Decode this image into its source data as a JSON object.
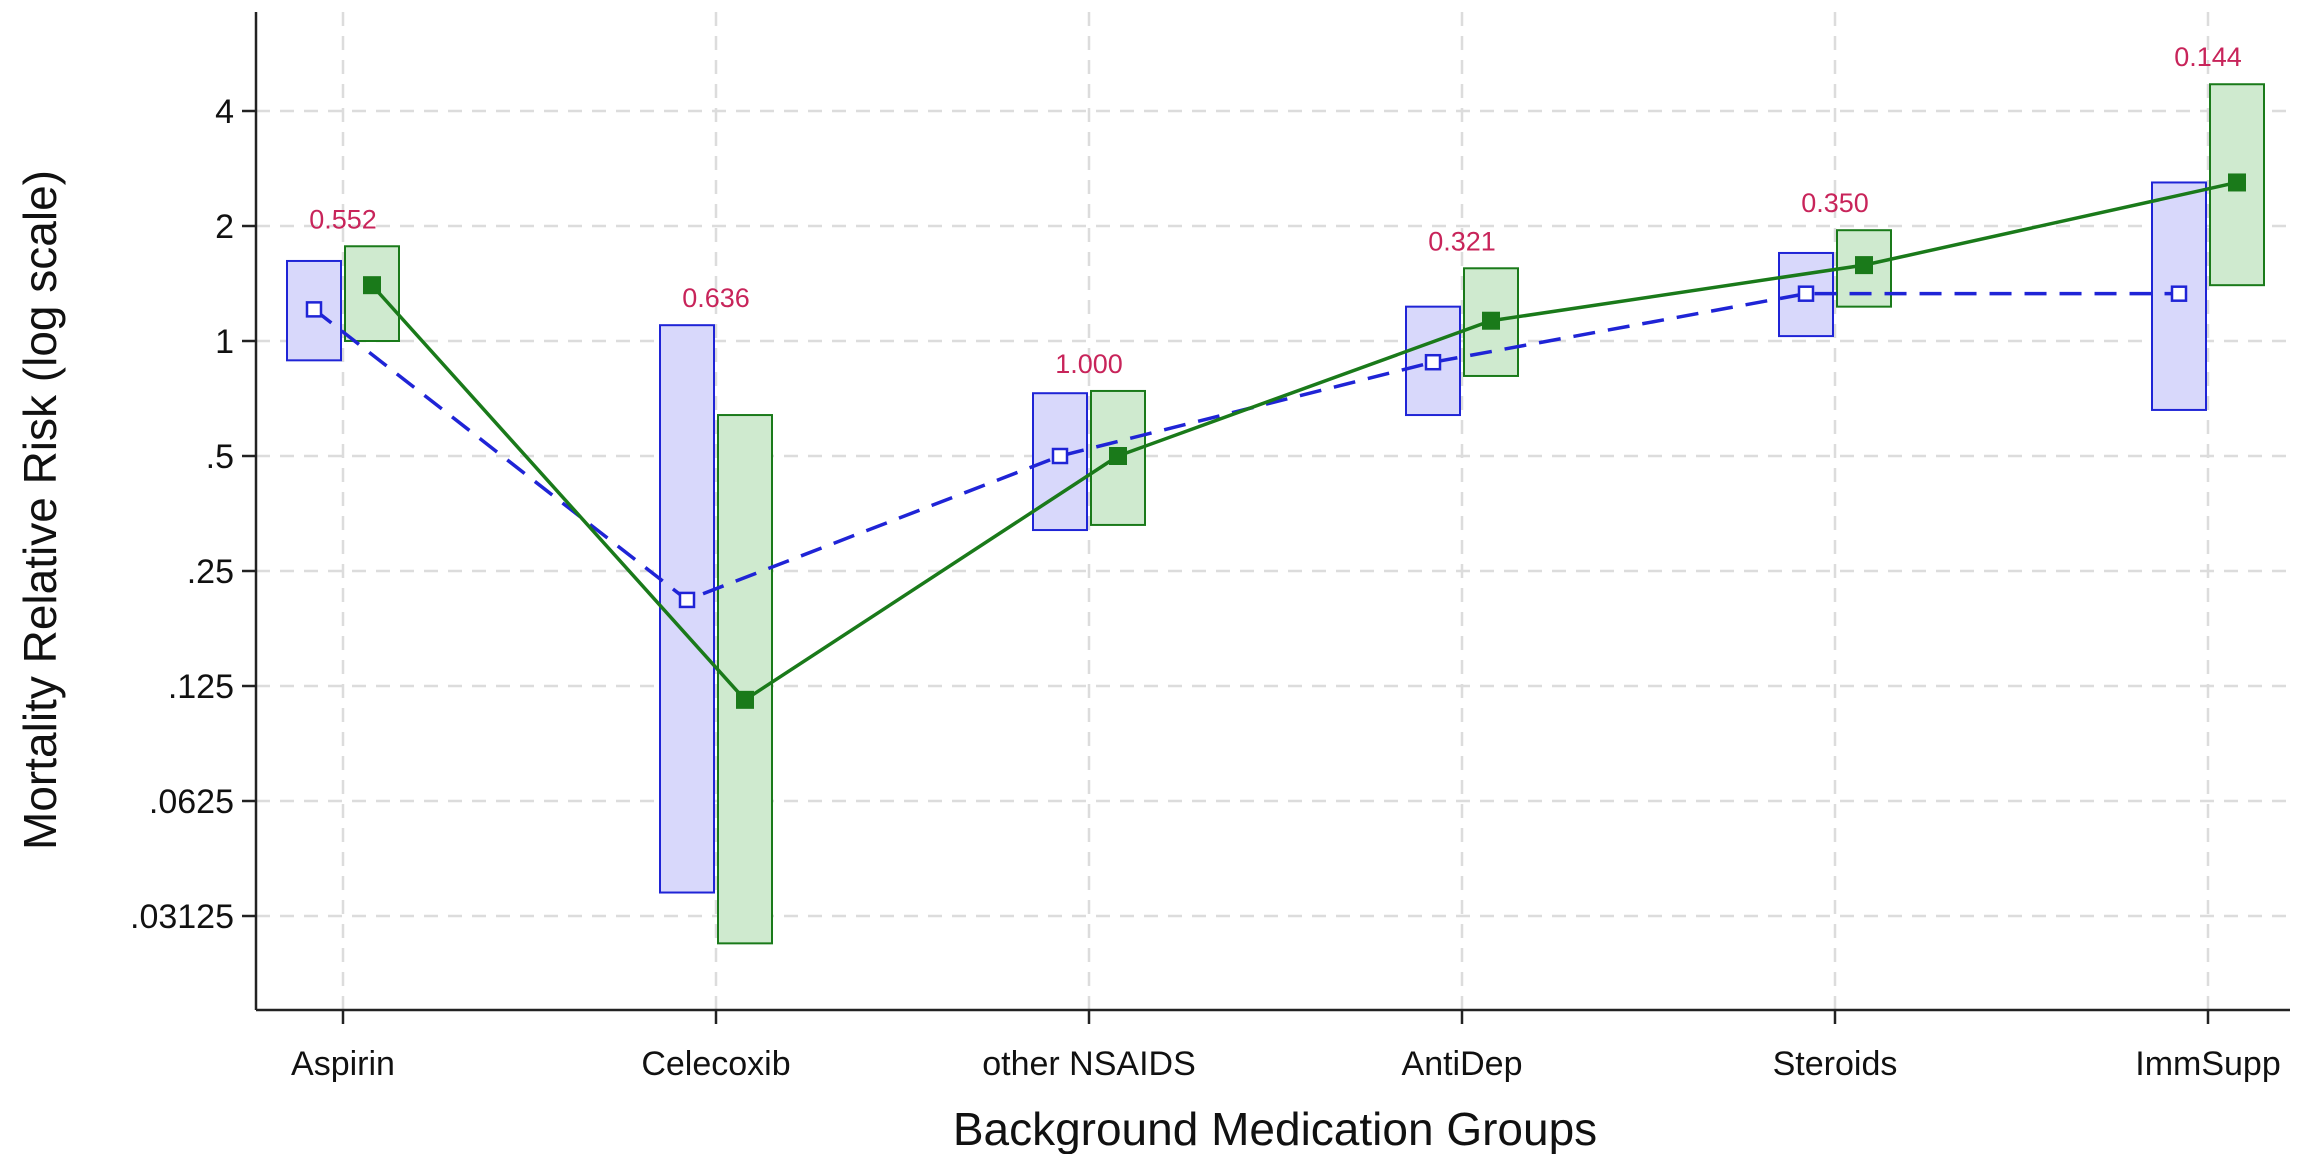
{
  "chart_data": {
    "type": "line",
    "xlabel": "Background Medication Groups",
    "ylabel": "Mortality Relative Risk (log scale)",
    "y_scale": "log2",
    "ylim": [
      0.0221,
      7.5
    ],
    "grid": true,
    "legend": "none",
    "categories": [
      "Aspirin",
      "Celecoxib",
      "other NSAIDS",
      "AntiDep",
      "Steroids",
      "ImmSupp"
    ],
    "y_ticks": [
      {
        "value": 0.03125,
        "label": ".03125"
      },
      {
        "value": 0.0625,
        "label": ".0625"
      },
      {
        "value": 0.125,
        "label": ".125"
      },
      {
        "value": 0.25,
        "label": ".25"
      },
      {
        "value": 0.5,
        "label": ".5"
      },
      {
        "value": 1,
        "label": "1"
      },
      {
        "value": 2,
        "label": "2"
      },
      {
        "value": 4,
        "label": "4"
      }
    ],
    "p_values": [
      "0.552",
      "0.636",
      "1.000",
      "0.321",
      "0.350",
      "0.144"
    ],
    "series": [
      {
        "line_style": "dashed",
        "marker": "hollow-square",
        "color": "#1f24d6",
        "fill": "#d8d8fb",
        "values": [
          1.21,
          0.21,
          0.5,
          0.88,
          1.33,
          1.33
        ],
        "lower": [
          0.89,
          0.036,
          0.32,
          0.64,
          1.03,
          0.66
        ],
        "upper": [
          1.62,
          1.1,
          0.73,
          1.23,
          1.7,
          2.6
        ]
      },
      {
        "line_style": "solid",
        "marker": "filled-square",
        "color": "#1a7a1a",
        "fill": "#cfeacf",
        "values": [
          1.4,
          0.115,
          0.5,
          1.13,
          1.58,
          2.6
        ],
        "lower": [
          1.0,
          0.0265,
          0.33,
          0.81,
          1.23,
          1.4
        ],
        "upper": [
          1.77,
          0.64,
          0.74,
          1.55,
          1.95,
          4.7
        ]
      }
    ],
    "annotation_color": "#c8245a"
  }
}
